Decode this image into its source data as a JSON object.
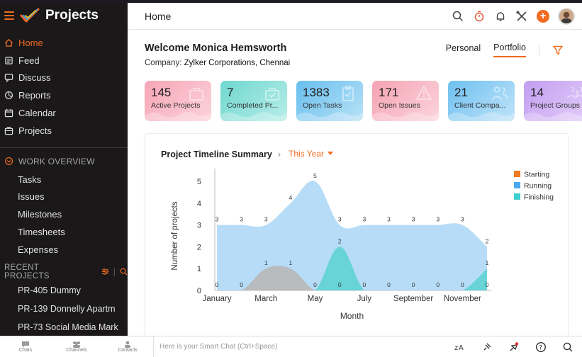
{
  "app": {
    "title": "Projects"
  },
  "sidebar": {
    "nav": [
      {
        "label": "Home",
        "icon": "home-icon",
        "active": true
      },
      {
        "label": "Feed",
        "icon": "feed-icon"
      },
      {
        "label": "Discuss",
        "icon": "discuss-icon"
      },
      {
        "label": "Reports",
        "icon": "reports-icon"
      },
      {
        "label": "Calendar",
        "icon": "calendar-icon"
      },
      {
        "label": "Projects",
        "icon": "projects-icon"
      }
    ],
    "work_overview": {
      "label": "WORK OVERVIEW",
      "items": [
        "Tasks",
        "Issues",
        "Milestones",
        "Timesheets",
        "Expenses"
      ]
    },
    "recent": {
      "label": "RECENT PROJECTS",
      "items": [
        "PR-405 Dummy",
        "PR-139 Donnelly Apartm",
        "PR-73 Social Media Mark"
      ]
    }
  },
  "header": {
    "title": "Home"
  },
  "main": {
    "welcome": "Welcome Monica Hemsworth",
    "company_label": "Company:",
    "company_name": "Zylker Corporations, Chennai",
    "tabs": [
      "Personal",
      "Portfolio"
    ],
    "active_tab": "Portfolio"
  },
  "cards": [
    {
      "value": "145",
      "label": "Active Projects",
      "color": "#f7a6b6",
      "color2": "#fbd2da",
      "icon": "briefcase-icon"
    },
    {
      "value": "7",
      "label": "Completed Pr...",
      "color": "#6fd7cf",
      "color2": "#b7ede8",
      "icon": "briefcase-check-icon"
    },
    {
      "value": "1383",
      "label": "Open Tasks",
      "color": "#67bfee",
      "color2": "#b8e1f7",
      "icon": "clipboard-check-icon"
    },
    {
      "value": "171",
      "label": "Open Issues",
      "color": "#f5a3b3",
      "color2": "#fbd4dc",
      "icon": "alert-icon"
    },
    {
      "value": "21",
      "label": "Client Compa...",
      "color": "#6ec0f0",
      "color2": "#bfe3f9",
      "icon": "users-icon"
    },
    {
      "value": "14",
      "label": "Project Groups",
      "color": "#c39ef1",
      "color2": "#e2cdf8",
      "icon": "group-icon"
    }
  ],
  "chart_panel": {
    "title": "Project Timeline Summary",
    "period": "This Year"
  },
  "chart_data": {
    "type": "area",
    "title": "Project Timeline Summary",
    "xlabel": "Month",
    "ylabel": "Number of projects",
    "ylim": [
      0,
      5
    ],
    "yticks": [
      0,
      1,
      2,
      3,
      4,
      5
    ],
    "x": [
      "January",
      "February",
      "March",
      "April",
      "May",
      "June",
      "July",
      "August",
      "September",
      "October",
      "November",
      "December"
    ],
    "xtick_labels": [
      "January",
      "",
      "March",
      "",
      "May",
      "",
      "July",
      "",
      "September",
      "",
      "November",
      ""
    ],
    "series": [
      {
        "name": "Starting",
        "color": "#ef7a22",
        "values": [
          0,
          0,
          1,
          1,
          0,
          0,
          0,
          0,
          0,
          0,
          0,
          0
        ]
      },
      {
        "name": "Running",
        "color": "#4aa9ee",
        "values": [
          3,
          3,
          3,
          4,
          5,
          3,
          3,
          3,
          3,
          3,
          3,
          2
        ]
      },
      {
        "name": "Finishing",
        "color": "#3fcfcf",
        "values": [
          0,
          0,
          0,
          0,
          0,
          2,
          0,
          0,
          0,
          0,
          0,
          1
        ]
      }
    ],
    "legend": "top-right",
    "grid": false
  },
  "bottombar": {
    "items": [
      "Chats",
      "Channels",
      "Contacts"
    ],
    "smart_chat_placeholder": "Here is your Smart Chat (Ctrl+Space)"
  }
}
